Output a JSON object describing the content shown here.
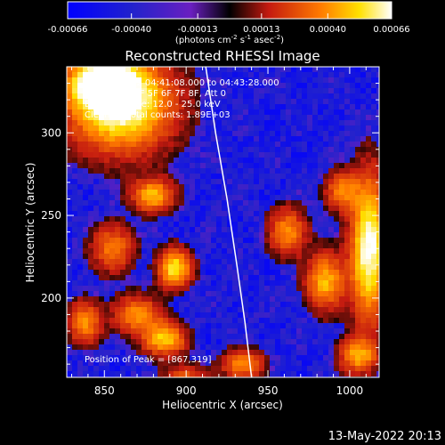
{
  "chart_data": {
    "type": "heatmap",
    "title": "Reconstructed RHESSI Image",
    "xlabel": "Heliocentric X (arcsec)",
    "ylabel": "Heliocentric Y (arcsec)",
    "xlim": [
      827,
      1018
    ],
    "ylim": [
      152,
      340
    ],
    "xticks": [
      "850",
      "900",
      "950",
      "1000"
    ],
    "yticks": [
      "200",
      "250",
      "300"
    ],
    "xtick_values": [
      850,
      900,
      950,
      1000
    ],
    "ytick_values": [
      200,
      250,
      300
    ],
    "colorbar": {
      "ticks": [
        "-0.00066",
        "-0.00040",
        "-0.00013",
        "0.00013",
        "0.00040",
        "0.00066"
      ],
      "tick_values": [
        -0.00066,
        -0.0004,
        -0.00013,
        0.00013,
        0.0004,
        0.00066
      ],
      "unit_main": "(photons cm",
      "unit_exp1": "-2",
      "unit_mid": " s",
      "unit_exp2": "-1",
      "unit_mid2": " asec",
      "unit_exp3": "-2",
      "unit_end": ")"
    },
    "annotations": {
      "line1": "23-Aug-2012 04:41:08.000 to 04:43:28.000",
      "line2": "Detectors: 3F 5F 6F 7F 8F, Att 0",
      "line3": "Energy Range: 12.0 - 25.0 keV",
      "line4": "Clean      Total counts: 1.89E+03",
      "peak": "Position of Peak = [867,319]"
    },
    "peak": [
      867,
      319
    ],
    "limb": [
      [
        912,
        340
      ],
      [
        918,
        300
      ],
      [
        925,
        260
      ],
      [
        931,
        220
      ],
      [
        936,
        185
      ],
      [
        940,
        152
      ]
    ],
    "sources": [
      {
        "x": 860,
        "y": 318,
        "amp": 1.0,
        "sx": 22,
        "sy": 20
      },
      {
        "x": 848,
        "y": 330,
        "amp": 0.7,
        "sx": 14,
        "sy": 10
      },
      {
        "x": 880,
        "y": 262,
        "amp": 0.65,
        "sx": 9,
        "sy": 7
      },
      {
        "x": 893,
        "y": 218,
        "amp": 0.8,
        "sx": 7,
        "sy": 8
      },
      {
        "x": 887,
        "y": 175,
        "amp": 0.7,
        "sx": 9,
        "sy": 7
      },
      {
        "x": 870,
        "y": 190,
        "amp": 0.55,
        "sx": 10,
        "sy": 8
      },
      {
        "x": 855,
        "y": 230,
        "amp": 0.5,
        "sx": 9,
        "sy": 10
      },
      {
        "x": 838,
        "y": 185,
        "amp": 0.55,
        "sx": 7,
        "sy": 9
      },
      {
        "x": 1012,
        "y": 230,
        "amp": 0.95,
        "sx": 8,
        "sy": 30
      },
      {
        "x": 985,
        "y": 210,
        "amp": 0.65,
        "sx": 8,
        "sy": 12
      },
      {
        "x": 962,
        "y": 240,
        "amp": 0.55,
        "sx": 8,
        "sy": 10
      },
      {
        "x": 995,
        "y": 265,
        "amp": 0.5,
        "sx": 7,
        "sy": 8
      },
      {
        "x": 935,
        "y": 160,
        "amp": 0.55,
        "sx": 9,
        "sy": 6
      },
      {
        "x": 900,
        "y": 150,
        "amp": 0.45,
        "sx": 10,
        "sy": 6
      },
      {
        "x": 1005,
        "y": 165,
        "amp": 0.6,
        "sx": 8,
        "sy": 7
      }
    ]
  },
  "footer": {
    "timestamp": "13-May-2022 20:13"
  }
}
